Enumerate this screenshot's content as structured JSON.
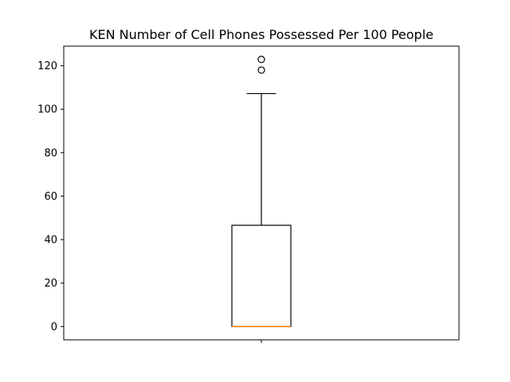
{
  "chart_data": {
    "type": "box",
    "title": "KEN Number of Cell Phones Possessed Per 100 People",
    "xlabel": "",
    "ylabel": "",
    "ylim": [
      -6.1,
      129.0
    ],
    "yticks": [
      0,
      20,
      40,
      60,
      80,
      100,
      120
    ],
    "grid": false,
    "series": [
      {
        "min": 0,
        "q1": 0,
        "median": 0,
        "q3": 46.6,
        "max": 107.2,
        "outliers": [
          118.0,
          122.9
        ]
      }
    ],
    "colors": {
      "box": "#000000",
      "median": "#ff7f0e",
      "whisker": "#000000",
      "outlier_edge": "#000000"
    }
  }
}
